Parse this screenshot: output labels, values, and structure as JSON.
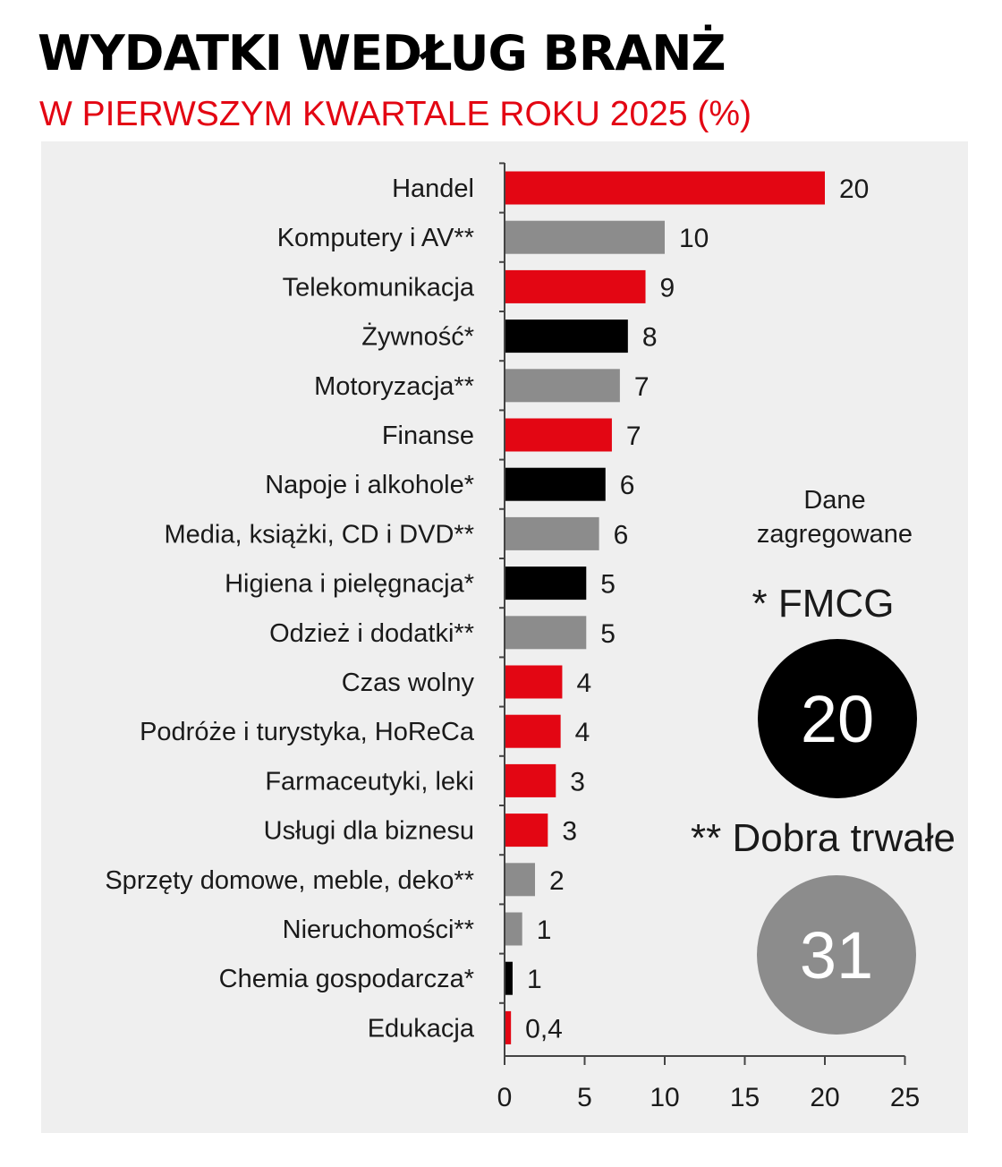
{
  "title": "WYDATKI WEDŁUG BRANŻ",
  "subtitle": "W PIERWSZYM KWARTALE ROKU 2025 (%)",
  "colors": {
    "accent_red": "#e30613",
    "gray": "#8c8c8c",
    "black": "#000000",
    "panel": "#efefef"
  },
  "chart_data": {
    "type": "bar",
    "orientation": "horizontal",
    "categories": [
      "Handel",
      "Komputery i AV**",
      "Telekomunikacja",
      "Żywność*",
      "Motoryzacja**",
      "Finanse",
      "Napoje i alkohole*",
      "Media, książki, CD i DVD**",
      "Higiena i pielęgnacja*",
      "Odzież i dodatki**",
      "Czas wolny",
      "Podróże i turystyka, HoReCa",
      "Farmaceutyki, leki",
      "Usługi dla biznesu",
      "Sprzęty domowe, meble, deko**",
      "Nieruchomości**",
      "Chemia gospodarcza*",
      "Edukacja"
    ],
    "values": [
      20,
      10,
      8.8,
      7.7,
      7.2,
      6.7,
      6.3,
      5.9,
      5.1,
      5.1,
      3.6,
      3.5,
      3.2,
      2.7,
      1.9,
      1.1,
      0.5,
      0.4
    ],
    "value_labels": [
      "20",
      "10",
      "9",
      "8",
      "7",
      "7",
      "6",
      "6",
      "5",
      "5",
      "4",
      "4",
      "3",
      "3",
      "2",
      "1",
      "1",
      "0,4"
    ],
    "groups": [
      "other",
      "durable",
      "other",
      "fmcg",
      "durable",
      "other",
      "fmcg",
      "durable",
      "fmcg",
      "durable",
      "other",
      "other",
      "other",
      "other",
      "durable",
      "durable",
      "fmcg",
      "other"
    ],
    "group_colors": {
      "other": "#e30613",
      "durable": "#8c8c8c",
      "fmcg": "#000000"
    },
    "xlim": [
      0,
      25
    ],
    "xticks": [
      0,
      5,
      10,
      15,
      20,
      25
    ],
    "grid": false,
    "legend": "right"
  },
  "aggregates": {
    "heading": "Dane zagregowane",
    "fmcg": {
      "label": "* FMCG",
      "value": "20"
    },
    "durable": {
      "label": "** Dobra trwałe",
      "value": "31"
    }
  }
}
